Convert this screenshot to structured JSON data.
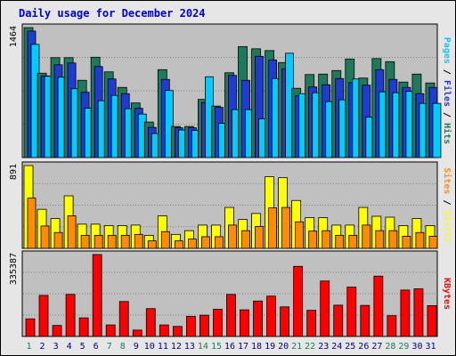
{
  "chart_data": {
    "type": "bar",
    "title": "Daily usage for December 2024",
    "categories": [
      "1",
      "2",
      "3",
      "4",
      "5",
      "6",
      "7",
      "8",
      "9",
      "10",
      "11",
      "12",
      "13",
      "14",
      "15",
      "16",
      "17",
      "18",
      "19",
      "20",
      "21",
      "22",
      "23",
      "24",
      "25",
      "26",
      "27",
      "28",
      "29",
      "30",
      "31"
    ],
    "weekend_days": [
      "1",
      "7",
      "8",
      "14",
      "15",
      "21",
      "22",
      "28",
      "29"
    ],
    "panels": [
      {
        "scale_label": "1464",
        "ymax": 1464,
        "series": [
          {
            "name": "Hits",
            "color": "#1f7a5c",
            "values": [
              1464,
              950,
              1125,
              1125,
              870,
              1130,
              965,
              790,
              615,
              400,
              990,
              350,
              350,
              655,
              580,
              955,
              1250,
              1225,
              1205,
              1070,
              780,
              935,
              940,
              980,
              1110,
              895,
              1115,
              1080,
              850,
              940,
              840
            ]
          },
          {
            "name": "Files",
            "color": "#1e3cd2",
            "values": [
              1425,
              920,
              1045,
              1065,
              735,
              1025,
              885,
              720,
              555,
              340,
              880,
              335,
              335,
              620,
              565,
              925,
              870,
              1140,
              1100,
              1000,
              695,
              795,
              820,
              890,
              845,
              815,
              990,
              880,
              790,
              720,
              790
            ]
          },
          {
            "name": "Pages",
            "color": "#00ccff",
            "values": [
              1275,
              915,
              905,
              775,
              555,
              640,
              700,
              550,
              490,
              270,
              755,
              310,
              305,
              910,
              385,
              540,
              540,
              435,
              890,
              1175,
              720,
              730,
              630,
              650,
              885,
              455,
              740,
              730,
              745,
              610,
              610
            ]
          }
        ]
      },
      {
        "scale_label": "891",
        "ymax": 891,
        "series": [
          {
            "name": "Visits",
            "color": "#ffff00",
            "values": [
              891,
              420,
              320,
              565,
              260,
              260,
              245,
              245,
              250,
              140,
              350,
              150,
              190,
              250,
              250,
              440,
              310,
              375,
              770,
              760,
              515,
              330,
              330,
              250,
              250,
              440,
              345,
              335,
              245,
              320,
              245
            ]
          },
          {
            "name": "Sites",
            "color": "#ff8c00",
            "values": [
              540,
              240,
              170,
              350,
              140,
              140,
              140,
              140,
              150,
              80,
              180,
              80,
              100,
              125,
              125,
              250,
              190,
              235,
              435,
              440,
              285,
              185,
              190,
              140,
              140,
              250,
              190,
              190,
              130,
              170,
              130
            ]
          }
        ]
      },
      {
        "scale_label": "335387",
        "ymax": 335387,
        "series": [
          {
            "name": "KBytes",
            "color": "#ff0000",
            "values": [
              72000,
              168000,
              45000,
              172000,
              76000,
              335387,
              47000,
              143000,
              26000,
              114000,
              47000,
              41000,
              82000,
              87000,
              111000,
              172000,
              109000,
              145000,
              165000,
              121000,
              287000,
              107000,
              227000,
              128000,
              202000,
              127000,
              247000,
              85000,
              190000,
              195000,
              126000
            ]
          }
        ]
      }
    ],
    "right_labels": [
      [
        {
          "text": "Pages",
          "color": "#00ccff"
        },
        {
          "text": " / ",
          "color": "#000000"
        },
        {
          "text": "Files",
          "color": "#1e3cd2"
        },
        {
          "text": " / ",
          "color": "#000000"
        },
        {
          "text": "Hits",
          "color": "#1f7a5c"
        }
      ],
      [
        {
          "text": "Sites",
          "color": "#ff8c00"
        },
        {
          "text": " / ",
          "color": "#000000"
        },
        {
          "text": "Visits",
          "color": "#ffff00"
        }
      ],
      [
        {
          "text": "KBytes",
          "color": "#ff0000"
        }
      ]
    ]
  }
}
